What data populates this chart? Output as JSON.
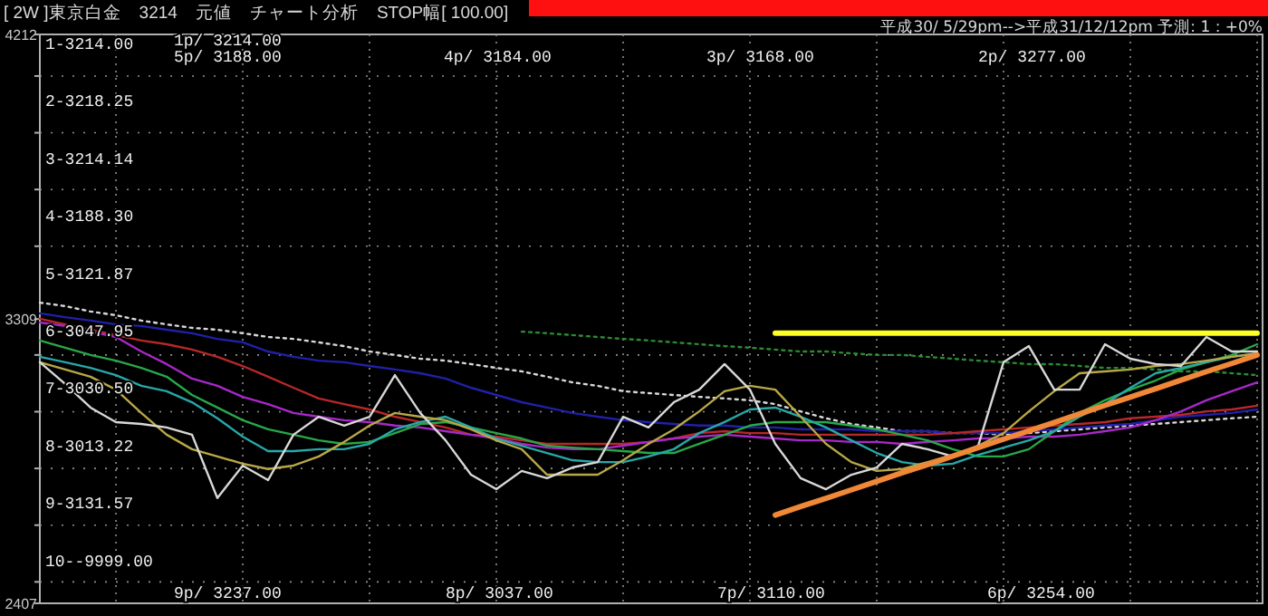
{
  "chart_data": {
    "type": "line",
    "title": "[ 2W ]東京白金　3214　元値　チャート分析　STOP幅[ 100.00]",
    "subtitle": "平成30/ 5/29pm-->平成31/12/12pm 予測: 1 : +0%",
    "annotations": [
      "1-3214.00",
      "2-3218.25",
      "3-3214.14",
      "4-3188.30",
      "5-3121.87",
      "6-3047.95",
      "7-3030.50",
      "8-3013.22",
      "9-3131.57",
      "10--9999.00",
      "1p/ 3214.00",
      "5p/ 3188.00",
      "4p/ 3184.00",
      "3p/ 3168.00",
      "2p/ 3277.00",
      "9p/ 3237.00",
      "8p/ 3037.00",
      "7p/ 3110.00",
      "6p/ 3254.00"
    ],
    "categories": [
      null,
      null,
      null,
      null,
      null,
      null,
      null,
      null,
      null,
      null,
      null,
      null,
      null,
      null,
      null,
      null,
      null,
      null,
      null,
      null,
      null,
      null,
      null,
      null,
      null,
      null,
      null,
      null,
      null,
      null,
      null,
      null,
      null,
      null,
      null,
      null,
      null,
      null,
      null,
      null,
      null,
      null,
      null,
      null,
      null,
      null,
      null,
      null,
      null
    ],
    "ylim": [
      2407,
      4212
    ],
    "yticks": [
      4212,
      {
        "value": 4080,
        "label": null
      },
      {
        "value": 3900,
        "label": null
      },
      {
        "value": 3720,
        "label": null
      },
      {
        "value": 3540,
        "label": null
      },
      3309,
      {
        "value": 3195,
        "label": null
      },
      {
        "value": 3015,
        "label": null
      },
      {
        "value": 2835,
        "label": null
      },
      {
        "value": 2655,
        "label": null
      },
      {
        "value": 2475,
        "label": null
      },
      2407
    ],
    "grid": true,
    "legend": false,
    "series": [
      {
        "color": "#d8d8d8",
        "line_style": "dotted",
        "values": [
          3361,
          3350,
          3333,
          3321,
          3304,
          3292,
          3281,
          3275,
          3264,
          3252,
          3246,
          3235,
          3223,
          3206,
          3195,
          3183,
          3177,
          3166,
          3154,
          3143,
          3126,
          3108,
          3097,
          3080,
          3074,
          3068,
          3062,
          3057,
          3051,
          3039,
          3016,
          2994,
          2976,
          2965,
          2953,
          2953,
          2947,
          2947,
          2942,
          2947,
          2953,
          2959,
          2965,
          2971,
          2976,
          2982,
          2988,
          2994,
          2999
        ]
      },
      {
        "color": "#2a8a30",
        "line_style": "dotted",
        "values": [
          null,
          null,
          null,
          null,
          null,
          null,
          null,
          null,
          null,
          null,
          null,
          null,
          null,
          null,
          null,
          null,
          null,
          null,
          null,
          3269,
          3264,
          3258,
          3252,
          3246,
          3241,
          3235,
          3229,
          3223,
          3218,
          3212,
          3206,
          3206,
          3200,
          3195,
          3195,
          3189,
          3183,
          3177,
          3172,
          3166,
          3166,
          3160,
          3154,
          3154,
          3149,
          3143,
          3143,
          3137,
          3131
        ]
      },
      {
        "color": "#2020a8",
        "line_style": "solid",
        "values": [
          3327,
          3315,
          3304,
          3292,
          3287,
          3275,
          3264,
          3246,
          3235,
          3206,
          3189,
          3177,
          3172,
          3160,
          3149,
          3137,
          3120,
          3091,
          3068,
          3045,
          3028,
          3011,
          2999,
          2988,
          2982,
          2976,
          2971,
          2971,
          2965,
          2965,
          2959,
          2959,
          2959,
          2953,
          2953,
          2953,
          2947,
          2947,
          2947,
          2953,
          2959,
          2965,
          2971,
          2976,
          2988,
          2999,
          3005,
          3011,
          3022
        ]
      },
      {
        "color": "#b82828",
        "line_style": "solid",
        "values": [
          3310,
          3292,
          3275,
          3258,
          3241,
          3229,
          3212,
          3189,
          3160,
          3126,
          3091,
          3057,
          3039,
          3022,
          2999,
          2982,
          2965,
          2942,
          2936,
          2924,
          2913,
          2913,
          2913,
          2913,
          2919,
          2930,
          2947,
          2953,
          2947,
          2947,
          2942,
          2942,
          2942,
          2942,
          2942,
          2942,
          2947,
          2953,
          2959,
          2965,
          2971,
          2976,
          2982,
          2994,
          2999,
          3005,
          3016,
          3022,
          3034
        ]
      },
      {
        "color": "#a828c8",
        "line_style": "solid",
        "values": [
          3298,
          3287,
          3269,
          3252,
          3206,
          3166,
          3120,
          3097,
          3062,
          3039,
          3011,
          2999,
          2988,
          2982,
          2971,
          2965,
          2953,
          2942,
          2930,
          2913,
          2901,
          2896,
          2896,
          2907,
          2919,
          2930,
          2936,
          2942,
          2936,
          2930,
          2924,
          2924,
          2919,
          2919,
          2913,
          2919,
          2924,
          2930,
          2930,
          2936,
          2936,
          2942,
          2953,
          2965,
          2988,
          3016,
          3051,
          3080,
          3108
        ]
      },
      {
        "color": "#28a848",
        "line_style": "solid",
        "values": [
          3241,
          3218,
          3195,
          3177,
          3154,
          3126,
          3068,
          3028,
          2988,
          2959,
          2942,
          2924,
          2913,
          2919,
          2947,
          2976,
          2982,
          2965,
          2947,
          2930,
          2907,
          2901,
          2896,
          2890,
          2884,
          2884,
          2913,
          2942,
          2971,
          2982,
          2982,
          2982,
          2971,
          2959,
          2942,
          2924,
          2896,
          2873,
          2873,
          2896,
          2953,
          3011,
          3051,
          3085,
          3114,
          3149,
          3172,
          3195,
          3229
        ]
      },
      {
        "color": "#28a8a8",
        "line_style": "solid",
        "values": [
          3189,
          3172,
          3154,
          3131,
          3097,
          3080,
          3045,
          2994,
          2936,
          2890,
          2890,
          2896,
          2896,
          2913,
          2959,
          2982,
          2999,
          2965,
          2930,
          2907,
          2884,
          2861,
          2855,
          2855,
          2873,
          2896,
          2947,
          2982,
          3022,
          3028,
          2999,
          2965,
          2924,
          2884,
          2855,
          2844,
          2850,
          2878,
          2901,
          2924,
          2953,
          2999,
          3039,
          3091,
          3137,
          3154,
          3172,
          3189,
          3200
        ]
      },
      {
        "color": "#b8a848",
        "line_style": "solid",
        "values": [
          3172,
          3149,
          3126,
          3085,
          3011,
          2942,
          2896,
          2873,
          2850,
          2833,
          2844,
          2873,
          2919,
          2971,
          3011,
          2999,
          2988,
          2959,
          2924,
          2896,
          2815,
          2815,
          2815,
          2861,
          2913,
          2959,
          3016,
          3080,
          3097,
          3085,
          2999,
          2913,
          2855,
          2827,
          2833,
          2855,
          2878,
          2907,
          2947,
          3016,
          3080,
          3137,
          3143,
          3149,
          3160,
          3166,
          3177,
          3189,
          3200
        ]
      },
      {
        "color": "#d8d8d8",
        "line_style": "solid",
        "values": [
          3172,
          3103,
          3028,
          2982,
          2976,
          2965,
          2942,
          2741,
          2844,
          2798,
          2942,
          2999,
          2971,
          2999,
          3131,
          3011,
          2924,
          2815,
          2769,
          2827,
          2804,
          2838,
          2855,
          2999,
          2965,
          3045,
          3085,
          3166,
          3085,
          2913,
          2804,
          2769,
          2815,
          2838,
          2913,
          2896,
          2873,
          2907,
          3172,
          3223,
          3085,
          3085,
          3229,
          3183,
          3166,
          3160,
          3252,
          3206,
          3206
        ]
      },
      {
        "color": "#ffff28",
        "line_style": "solid",
        "values": [
          null,
          null,
          null,
          null,
          null,
          null,
          null,
          null,
          null,
          null,
          null,
          null,
          null,
          null,
          null,
          null,
          null,
          null,
          null,
          null,
          null,
          null,
          null,
          null,
          null,
          null,
          null,
          null,
          null,
          3264,
          3264,
          3264,
          3264,
          3264,
          3264,
          3264,
          3264,
          3264,
          3264,
          3264,
          3264,
          3264,
          3264,
          3264,
          3264,
          3264,
          3264,
          3264,
          3264
        ]
      },
      {
        "color": "#f08838",
        "line_style": "solid",
        "values": [
          null,
          null,
          null,
          null,
          null,
          null,
          null,
          null,
          null,
          null,
          null,
          null,
          null,
          null,
          null,
          null,
          null,
          null,
          null,
          null,
          null,
          null,
          null,
          null,
          null,
          null,
          null,
          null,
          null,
          2687,
          2714,
          2740,
          2767,
          2794,
          2821,
          2847,
          2874,
          2901,
          2928,
          2954,
          2981,
          3008,
          3035,
          3061,
          3088,
          3115,
          3142,
          3168,
          3195
        ]
      }
    ]
  }
}
